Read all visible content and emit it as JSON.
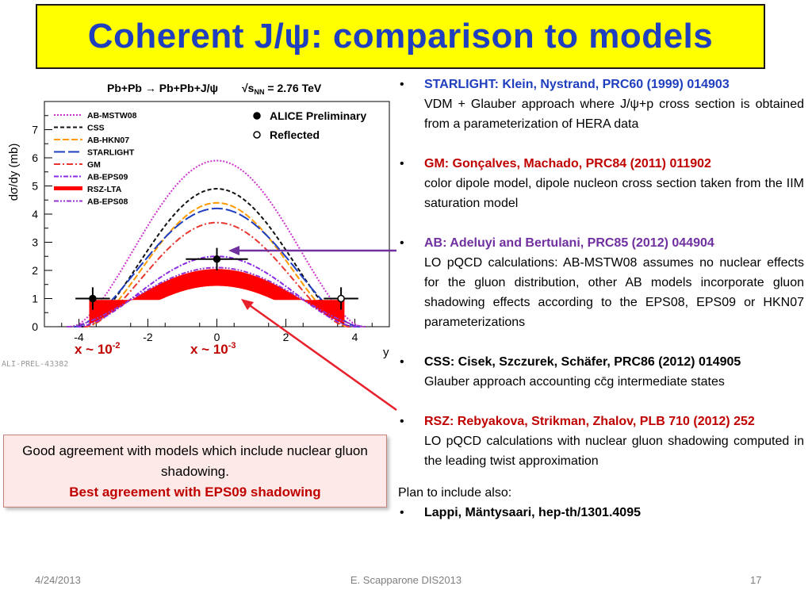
{
  "slide": {
    "title": "Coherent J/ψ: comparison to models",
    "plot": {
      "process": "Pb+Pb → Pb+Pb+J/ψ",
      "energy": "√s",
      "energy_sub": "NN",
      "energy_value": " = 2.76 TeV",
      "ylabel": "dσ/dy (mb)",
      "xlabel": "y",
      "ali_tag": "ALI-PREL-43382",
      "legend_models": [
        {
          "label": "AB-MSTW08",
          "color": "#cc33cc"
        },
        {
          "label": "CSS",
          "color": "#111111"
        },
        {
          "label": "AB-HKN07",
          "color": "#ff9900"
        },
        {
          "label": "STARLIGHT",
          "color": "#1f3fbf"
        },
        {
          "label": "GM",
          "color": "#e8362e"
        },
        {
          "label": "AB-EPS09",
          "color": "#8a2be2"
        },
        {
          "label": "RSZ-LTA",
          "color": "#ff0000"
        },
        {
          "label": "AB-EPS08",
          "color": "#9933cc"
        }
      ],
      "legend_data": [
        {
          "label": "ALICE Preliminary"
        },
        {
          "label": "Reflected"
        }
      ],
      "x_ticks": [
        "-4",
        "-2",
        "0",
        "2",
        "4"
      ],
      "y_ticks": [
        "0",
        "1",
        "2",
        "3",
        "4",
        "5",
        "6",
        "7"
      ],
      "x_annotation_left": "x ~ 10",
      "x_annotation_left_exp": "-2",
      "x_annotation_right": "x ~ 10",
      "x_annotation_right_exp": "-3"
    },
    "chart_data": {
      "type": "line",
      "xlabel": "y",
      "ylabel": "dσ/dy (mb)",
      "xlim": [
        -5,
        5
      ],
      "ylim": [
        0,
        8
      ],
      "series": [
        {
          "name": "AB-MSTW08",
          "peak": 5.9,
          "width": 4.2
        },
        {
          "name": "CSS",
          "peak": 4.9,
          "width": 3.9
        },
        {
          "name": "AB-HKN07",
          "peak": 4.4,
          "width": 3.8
        },
        {
          "name": "STARLIGHT",
          "peak": 4.2,
          "width": 4.1
        },
        {
          "name": "GM",
          "peak": 3.7,
          "width": 3.8
        },
        {
          "name": "AB-EPS09",
          "peak": 2.5,
          "width": 4.0
        },
        {
          "name": "RSZ-LTA",
          "peak": 1.8,
          "width": 3.7
        },
        {
          "name": "AB-EPS08",
          "peak": 2.1,
          "width": 4.3
        }
      ],
      "points": [
        {
          "name": "ALICE Preliminary",
          "x": [
            0.0,
            -3.6
          ],
          "y": [
            2.4,
            1.0
          ]
        },
        {
          "name": "Reflected",
          "x": [
            3.6
          ],
          "y": [
            1.0
          ]
        }
      ]
    },
    "references": [
      {
        "cite": "STARLIGHT: Klein, Nystrand, PRC60 (1999) 014903",
        "desc": "VDM + Glauber approach where J/ψ+p cross section is obtained from a parameterization of HERA data"
      },
      {
        "cite": "GM: Gonçalves, Machado, PRC84 (2011) 011902",
        "desc": "color dipole model, dipole nucleon cross section taken from the IIM saturation model"
      },
      {
        "cite": "AB: Adeluyi and Bertulani, PRC85 (2012) 044904",
        "desc": "LO pQCD calculations: AB-MSTW08 assumes no nuclear effects for the gluon distribution, other AB models incorporate gluon shadowing effects according to the EPS08, EPS09 or HKN07 parameterizations"
      },
      {
        "cite": "CSS: Cisek, Szczurek, Schäfer, PRC86 (2012) 014905",
        "desc": "Glauber approach accounting  cc̄g  intermediate states"
      },
      {
        "cite": "RSZ: Rebyakova, Strikman, Zhalov, PLB 710 (2012) 252",
        "desc": "LO pQCD calculations with nuclear gluon shadowing computed in the leading twist approximation"
      }
    ],
    "plan_label": "Plan to include also:",
    "plan_item": "Lappi, Mäntysaari, hep-th/1301.4095",
    "agreement_line1": "Good agreement with models which include nuclear gluon shadowing.",
    "agreement_line2": "Best agreement with EPS09 shadowing",
    "footer_date": "4/24/2013",
    "footer_center": "E. Scapparone DIS2013",
    "footer_page": "17"
  }
}
